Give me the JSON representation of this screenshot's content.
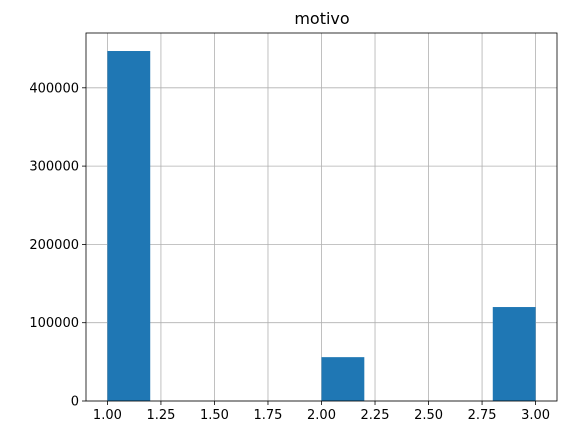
{
  "chart_data": {
    "type": "bar",
    "title": "motivo",
    "xlabel": "",
    "ylabel": "",
    "grid": true,
    "legend": "none",
    "bar_color": "#1f77b4",
    "xlim": [
      0.9,
      3.1
    ],
    "ylim": [
      0,
      470000
    ],
    "x_ticks": [
      1.0,
      1.25,
      1.5,
      1.75,
      2.0,
      2.25,
      2.5,
      2.75,
      3.0
    ],
    "x_tick_labels": [
      "1.00",
      "1.25",
      "1.50",
      "1.75",
      "2.00",
      "2.25",
      "2.50",
      "2.75",
      "3.00"
    ],
    "y_ticks": [
      0,
      100000,
      200000,
      300000,
      400000
    ],
    "y_tick_labels": [
      "0",
      "100000",
      "200000",
      "300000",
      "400000"
    ],
    "bins": [
      {
        "start": 1.0,
        "end": 1.2,
        "value": 447000
      },
      {
        "start": 1.2,
        "end": 1.4,
        "value": 0
      },
      {
        "start": 1.4,
        "end": 1.6,
        "value": 0
      },
      {
        "start": 1.6,
        "end": 1.8,
        "value": 0
      },
      {
        "start": 1.8,
        "end": 2.0,
        "value": 0
      },
      {
        "start": 2.0,
        "end": 2.2,
        "value": 56000
      },
      {
        "start": 2.2,
        "end": 2.4,
        "value": 0
      },
      {
        "start": 2.4,
        "end": 2.6,
        "value": 0
      },
      {
        "start": 2.6,
        "end": 2.8,
        "value": 0
      },
      {
        "start": 2.8,
        "end": 3.0,
        "value": 120000
      }
    ]
  }
}
